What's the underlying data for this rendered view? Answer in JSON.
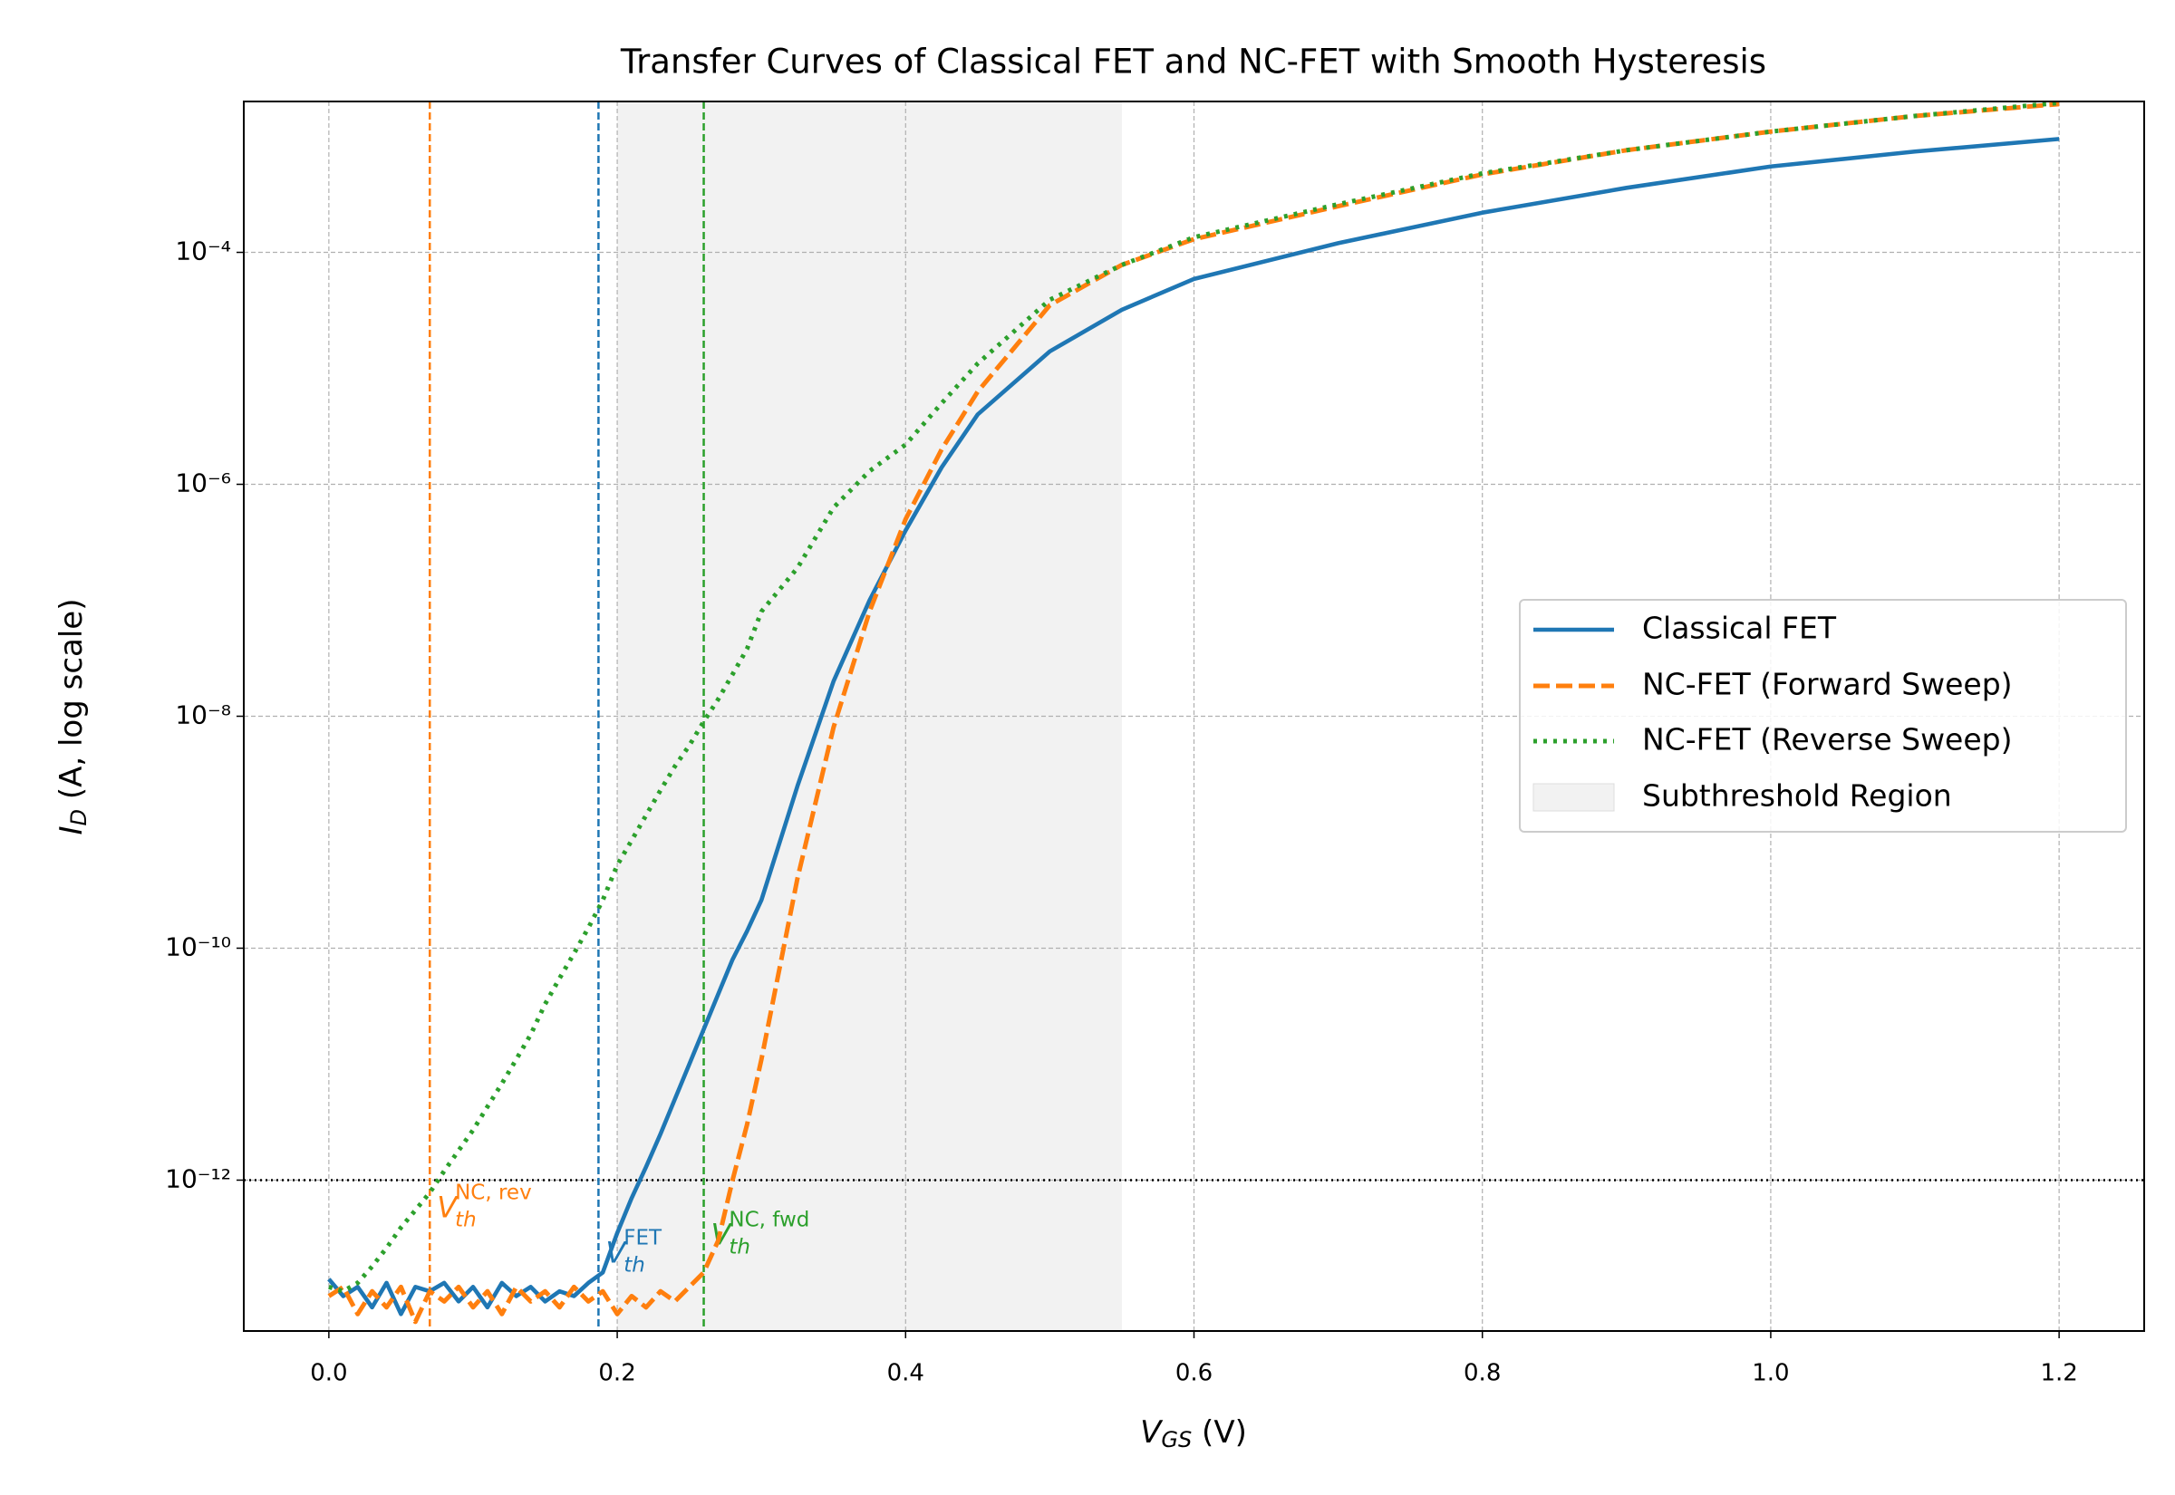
{
  "chart_data": {
    "type": "line",
    "title": "Transfer Curves of Classical FET and NC-FET with Smooth Hysteresis",
    "xlabel": {
      "main": "V",
      "sub": "GS",
      "rest": " (V)"
    },
    "ylabel": {
      "main": "I",
      "sub": "D",
      "rest": " (A, log scale)"
    },
    "log_y": true,
    "grid": true,
    "legend_position": "right",
    "xlim": [
      -0.059,
      1.259
    ],
    "ylim": [
      5e-14,
      0.002
    ],
    "xticks": [
      {
        "value": 0,
        "label": "0.0"
      },
      0.2,
      0.4,
      0.6,
      0.8,
      {
        "value": 1,
        "label": "1.0"
      },
      1.2
    ],
    "yticks": [
      {
        "value": 1e-12,
        "label": "10⁻¹²"
      },
      {
        "value": 1e-10,
        "label": "10⁻¹⁰"
      },
      {
        "value": 1e-08,
        "label": "10⁻⁸"
      },
      {
        "value": 1e-06,
        "label": "10⁻⁶"
      },
      {
        "value": 0.0001,
        "label": "10⁻⁴"
      }
    ],
    "x": [
      0,
      0.01,
      0.02,
      0.03,
      0.04,
      0.05,
      0.06,
      0.07,
      0.08,
      0.09,
      0.1,
      0.11,
      0.12,
      0.13,
      0.14,
      0.15,
      0.16,
      0.17,
      0.18,
      0.19,
      0.2,
      0.21,
      0.22,
      0.23,
      0.24,
      0.25,
      0.26,
      0.27,
      0.28,
      0.29,
      0.3,
      0.325,
      0.35,
      0.375,
      0.4,
      0.425,
      0.45,
      0.5,
      0.55,
      0.6,
      0.7,
      0.8,
      0.9,
      1.0,
      1.1,
      1.2
    ],
    "series": [
      {
        "name": "Classical FET",
        "color": "#1f77b4",
        "linestyle": "solid",
        "values": [
          1.4e-13,
          1e-13,
          1.2e-13,
          8e-14,
          1.3e-13,
          7e-14,
          1.2e-13,
          1.1e-13,
          1.3e-13,
          9e-14,
          1.2e-13,
          8e-14,
          1.3e-13,
          1e-13,
          1.2e-13,
          9e-14,
          1.1e-13,
          1e-13,
          1.3e-13,
          1.6e-13,
          3.5e-13,
          7e-13,
          1.3e-12,
          2.5e-12,
          5e-12,
          1e-11,
          2e-11,
          4e-11,
          8e-11,
          1.4e-10,
          2.6e-10,
          2.5e-09,
          2e-08,
          1e-07,
          4e-07,
          1.4e-06,
          4e-06,
          1.4e-05,
          3.2e-05,
          5.9e-05,
          0.00012,
          0.00022,
          0.00036,
          0.00055,
          0.00074,
          0.00095
        ]
      },
      {
        "name": "NC-FET (Forward Sweep)",
        "color": "#ff7f0e",
        "linestyle": "dashed",
        "values": [
          1e-13,
          1.2e-13,
          7e-14,
          1.1e-13,
          8e-14,
          1.2e-13,
          6e-14,
          1.1e-13,
          9e-14,
          1.2e-13,
          8e-14,
          1.1e-13,
          7e-14,
          1.2e-13,
          9e-14,
          1.1e-13,
          8e-14,
          1.2e-13,
          9e-14,
          1.1e-13,
          7e-14,
          1e-13,
          8e-14,
          1.1e-13,
          9e-14,
          1.2e-13,
          1.6e-13,
          3e-13,
          1e-12,
          3e-12,
          1.1e-11,
          4e-10,
          8e-09,
          8e-08,
          5e-07,
          2e-06,
          6.3e-06,
          3.5e-05,
          7.8e-05,
          0.00013,
          0.00025,
          0.00047,
          0.00076,
          0.0011,
          0.0015,
          0.0019
        ]
      },
      {
        "name": "NC-FET (Reverse Sweep)",
        "color": "#2ca02c",
        "linestyle": "dotted",
        "values": [
          1.2e-13,
          1.1e-13,
          1.3e-13,
          1.8e-13,
          2.6e-13,
          3.9e-13,
          5.5e-13,
          7.8e-13,
          1.2e-12,
          1.8e-12,
          2.7e-12,
          4.3e-12,
          6.8e-12,
          1.1e-11,
          1.8e-11,
          3.3e-11,
          5.5e-11,
          9e-11,
          1.5e-10,
          2.6e-10,
          5.2e-10,
          8.5e-10,
          1.4e-09,
          2.3e-09,
          3.7e-09,
          5.6e-09,
          9e-09,
          1.4e-08,
          2.3e-08,
          3.8e-08,
          8e-08,
          1.9e-07,
          6.3e-07,
          1.3e-06,
          2.2e-06,
          5e-06,
          1.1e-05,
          3.9e-05,
          7.8e-05,
          0.000135,
          0.00026,
          0.00048,
          0.00076,
          0.0011,
          0.0015,
          0.00195
        ]
      }
    ],
    "shaded_region": {
      "name": "Subthreshold Region",
      "xmin": 0.2,
      "xmax": 0.55,
      "color": "#f2f2f2"
    },
    "reference_line": {
      "value": 1e-12,
      "color": "#000000"
    },
    "threshold_lines": [
      {
        "value": 0.07,
        "color": "#ff7f0e",
        "label_main": "V",
        "label_sub": "th",
        "label_sup": "NC, rev"
      },
      {
        "value": 0.187,
        "color": "#1f77b4",
        "label_main": "V",
        "label_sub": "th",
        "label_sup": "FET"
      },
      {
        "value": 0.26,
        "color": "#2ca02c",
        "label_main": "V",
        "label_sub": "th",
        "label_sup": "NC, fwd"
      }
    ]
  }
}
